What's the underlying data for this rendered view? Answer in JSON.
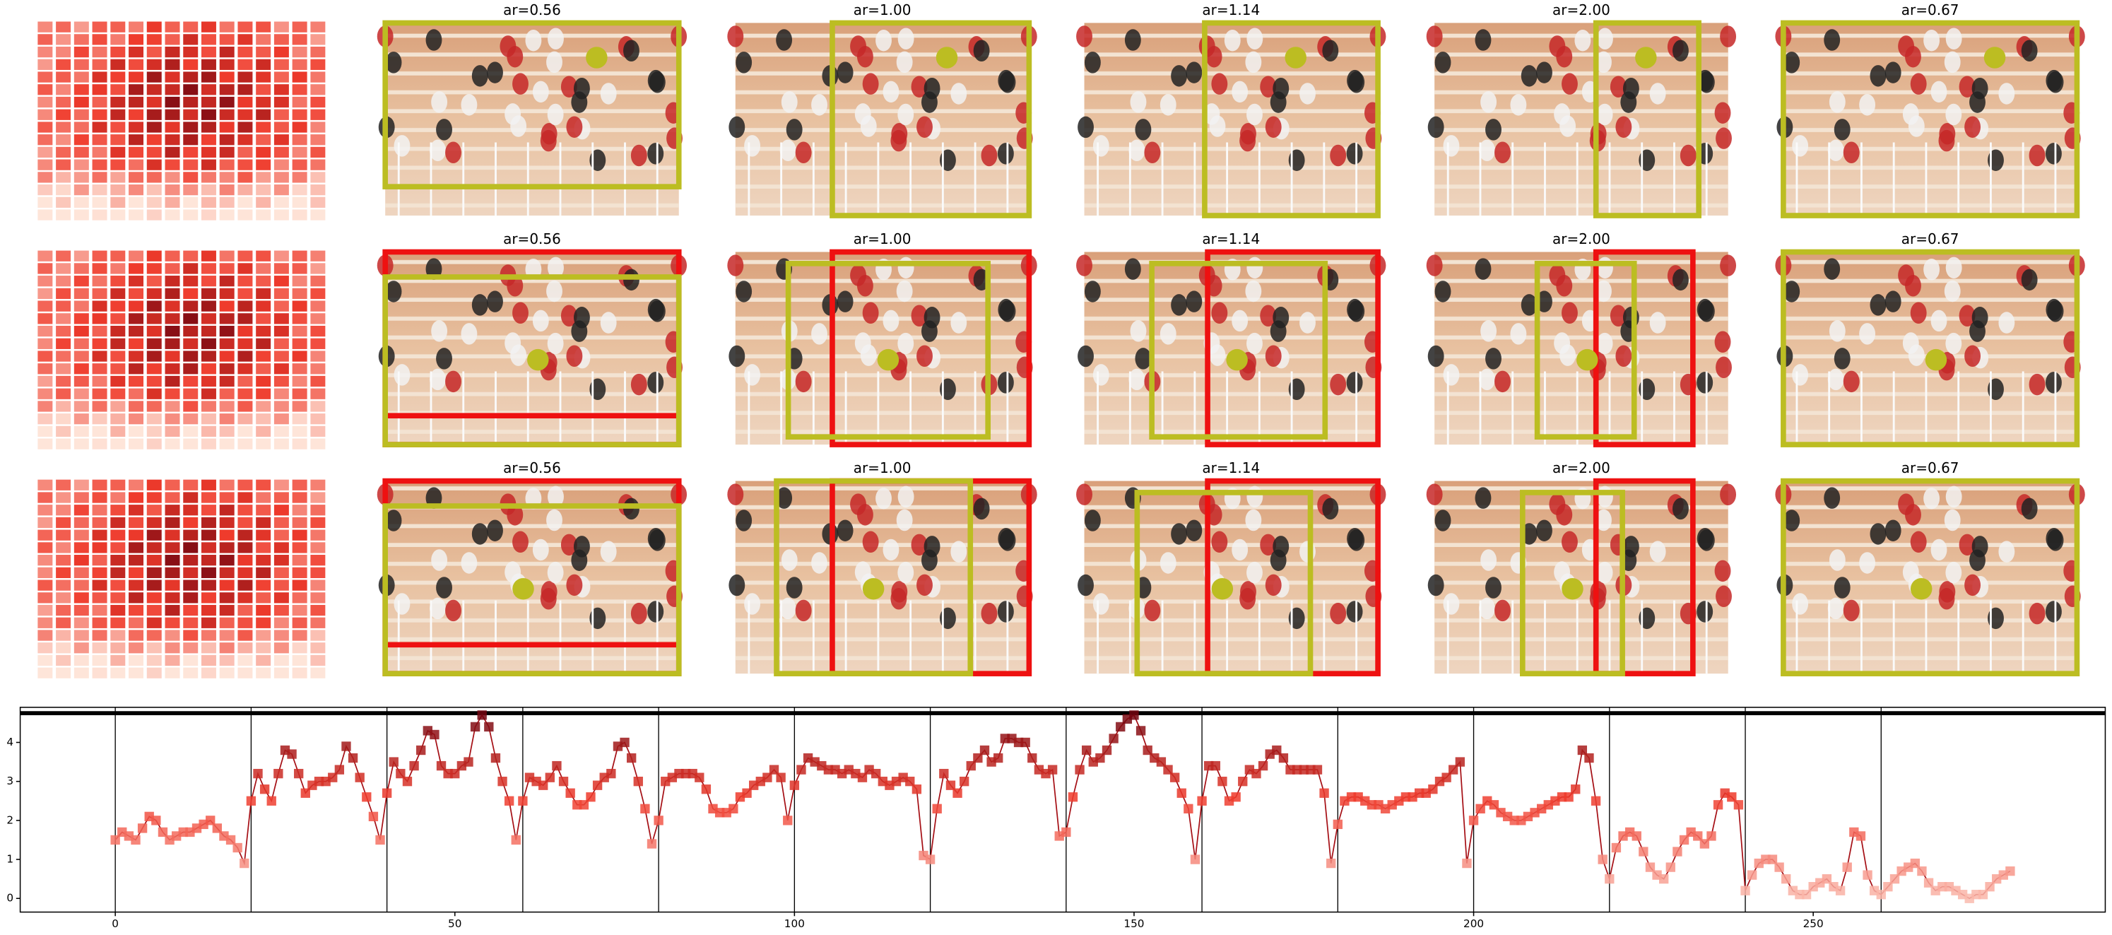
{
  "panels": [
    [
      "ar=0.56",
      "ar=1.00",
      "ar=1.14",
      "ar=2.00",
      "ar=0.67"
    ],
    [
      "ar=0.56",
      "ar=1.00",
      "ar=1.14",
      "ar=2.00",
      "ar=0.67"
    ],
    [
      "ar=0.56",
      "ar=1.00",
      "ar=1.14",
      "ar=2.00",
      "ar=0.67"
    ]
  ],
  "chart_data": {
    "type": "line",
    "color": "#a50f15",
    "marker": "square",
    "xlim": [
      -14,
      293
    ],
    "ylim": [
      -0.35,
      4.9
    ],
    "xticks": [
      0,
      50,
      100,
      150,
      200,
      250
    ],
    "yticks": [
      0,
      1,
      2,
      3,
      4
    ],
    "vlines": [
      0,
      20,
      40,
      60,
      80,
      100,
      120,
      140,
      160,
      180,
      200,
      220,
      240,
      260
    ],
    "hline": 4.75,
    "x": [
      0,
      1,
      2,
      3,
      4,
      5,
      6,
      7,
      8,
      9,
      10,
      11,
      12,
      13,
      14,
      15,
      16,
      17,
      18,
      19,
      20,
      21,
      22,
      23,
      24,
      25,
      26,
      27,
      28,
      29,
      30,
      31,
      32,
      33,
      34,
      35,
      36,
      37,
      38,
      39,
      40,
      41,
      42,
      43,
      44,
      45,
      46,
      47,
      48,
      49,
      50,
      51,
      52,
      53,
      54,
      55,
      56,
      57,
      58,
      59,
      60,
      61,
      62,
      63,
      64,
      65,
      66,
      67,
      68,
      69,
      70,
      71,
      72,
      73,
      74,
      75,
      76,
      77,
      78,
      79,
      80,
      81,
      82,
      83,
      84,
      85,
      86,
      87,
      88,
      89,
      90,
      91,
      92,
      93,
      94,
      95,
      96,
      97,
      98,
      99,
      100,
      101,
      102,
      103,
      104,
      105,
      106,
      107,
      108,
      109,
      110,
      111,
      112,
      113,
      114,
      115,
      116,
      117,
      118,
      119,
      120,
      121,
      122,
      123,
      124,
      125,
      126,
      127,
      128,
      129,
      130,
      131,
      132,
      133,
      134,
      135,
      136,
      137,
      138,
      139,
      140,
      141,
      142,
      143,
      144,
      145,
      146,
      147,
      148,
      149,
      150,
      151,
      152,
      153,
      154,
      155,
      156,
      157,
      158,
      159,
      160,
      161,
      162,
      163,
      164,
      165,
      166,
      167,
      168,
      169,
      170,
      171,
      172,
      173,
      174,
      175,
      176,
      177,
      178,
      179,
      180,
      181,
      182,
      183,
      184,
      185,
      186,
      187,
      188,
      189,
      190,
      191,
      192,
      193,
      194,
      195,
      196,
      197,
      198,
      199,
      200,
      201,
      202,
      203,
      204,
      205,
      206,
      207,
      208,
      209,
      210,
      211,
      212,
      213,
      214,
      215,
      216,
      217,
      218,
      219,
      220,
      221,
      222,
      223,
      224,
      225,
      226,
      227,
      228,
      229,
      230,
      231,
      232,
      233,
      234,
      235,
      236,
      237,
      238,
      239,
      240,
      241,
      242,
      243,
      244,
      245,
      246,
      247,
      248,
      249,
      250,
      251,
      252,
      253,
      254,
      255,
      256,
      257,
      258,
      259,
      260,
      261,
      262,
      263,
      264,
      265,
      266,
      267,
      268,
      269,
      270,
      271,
      272,
      273,
      274,
      275,
      276,
      277,
      278,
      279
    ],
    "values": [
      1.5,
      1.7,
      1.6,
      1.5,
      1.8,
      2.1,
      2.0,
      1.7,
      1.5,
      1.6,
      1.7,
      1.7,
      1.8,
      1.9,
      2.0,
      1.8,
      1.6,
      1.5,
      1.3,
      0.9,
      2.5,
      3.2,
      2.8,
      2.5,
      3.2,
      3.8,
      3.7,
      3.2,
      2.7,
      2.9,
      3.0,
      3.0,
      3.1,
      3.3,
      3.9,
      3.6,
      3.1,
      2.6,
      2.1,
      1.5,
      2.7,
      3.5,
      3.2,
      3.0,
      3.4,
      3.8,
      4.3,
      4.2,
      3.4,
      3.2,
      3.2,
      3.4,
      3.5,
      4.4,
      4.7,
      4.4,
      3.6,
      3.0,
      2.5,
      1.5,
      2.5,
      3.1,
      3.0,
      2.9,
      3.1,
      3.4,
      3.0,
      2.7,
      2.4,
      2.4,
      2.6,
      2.9,
      3.1,
      3.2,
      3.9,
      4.0,
      3.6,
      3.0,
      2.3,
      1.4,
      2.0,
      3.0,
      3.1,
      3.2,
      3.2,
      3.2,
      3.1,
      2.8,
      2.3,
      2.2,
      2.2,
      2.3,
      2.6,
      2.7,
      2.9,
      3.0,
      3.1,
      3.3,
      3.1,
      2.0,
      2.9,
      3.3,
      3.6,
      3.5,
      3.4,
      3.3,
      3.3,
      3.2,
      3.3,
      3.2,
      3.1,
      3.3,
      3.2,
      3.0,
      2.9,
      3.0,
      3.1,
      3.0,
      2.8,
      1.1,
      1.0,
      2.3,
      3.2,
      2.9,
      2.7,
      3.0,
      3.4,
      3.6,
      3.8,
      3.5,
      3.6,
      4.1,
      4.1,
      4.0,
      4.0,
      3.6,
      3.3,
      3.2,
      3.3,
      1.6,
      1.7,
      2.6,
      3.3,
      3.8,
      3.5,
      3.6,
      3.8,
      4.1,
      4.4,
      4.6,
      4.7,
      4.3,
      3.8,
      3.6,
      3.5,
      3.3,
      3.1,
      2.7,
      2.3,
      1.0,
      2.5,
      3.4,
      3.4,
      3.0,
      2.5,
      2.6,
      3.0,
      3.3,
      3.2,
      3.4,
      3.7,
      3.8,
      3.6,
      3.3,
      3.3,
      3.3,
      3.3,
      3.3,
      2.7,
      0.9,
      1.9,
      2.5,
      2.6,
      2.6,
      2.5,
      2.4,
      2.4,
      2.3,
      2.4,
      2.5,
      2.6,
      2.6,
      2.7,
      2.7,
      2.8,
      3.0,
      3.1,
      3.3,
      3.5,
      0.9,
      2.0,
      2.3,
      2.5,
      2.4,
      2.2,
      2.1,
      2.0,
      2.0,
      2.1,
      2.2,
      2.3,
      2.4,
      2.5,
      2.6,
      2.6,
      2.8,
      3.8,
      3.6,
      2.5,
      1.0,
      0.5,
      1.3,
      1.6,
      1.7,
      1.6,
      1.2,
      0.8,
      0.6,
      0.5,
      0.8,
      1.2,
      1.5,
      1.7,
      1.6,
      1.4,
      1.6,
      2.4,
      2.7,
      2.6,
      2.4,
      0.2,
      0.6,
      0.9,
      1.0,
      1.0,
      0.8,
      0.5,
      0.2,
      0.1,
      0.1,
      0.3,
      0.4,
      0.5,
      0.3,
      0.2,
      0.8,
      1.7,
      1.6,
      0.6,
      0.2,
      0.1,
      0.3,
      0.5,
      0.7,
      0.8,
      0.9,
      0.7,
      0.4,
      0.2,
      0.3,
      0.3,
      0.2,
      0.1,
      0.0,
      0.1,
      0.1,
      0.3,
      0.5,
      0.6,
      0.7
    ]
  }
}
